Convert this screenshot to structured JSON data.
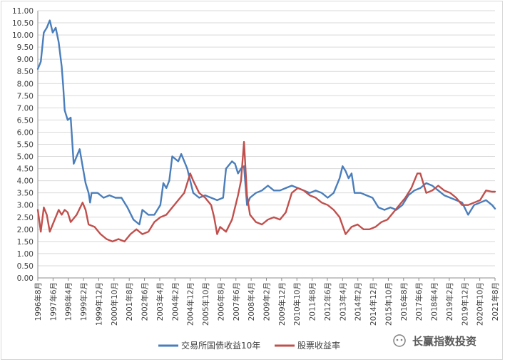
{
  "chart_data": {
    "type": "line",
    "title": "",
    "xlabel": "",
    "ylabel": "",
    "ylim": [
      0,
      11
    ],
    "y_ticks": [
      "0.00",
      "0.50",
      "1.00",
      "1.50",
      "2.00",
      "2.50",
      "3.00",
      "3.50",
      "4.00",
      "4.50",
      "5.00",
      "5.50",
      "6.00",
      "6.50",
      "7.00",
      "7.50",
      "8.00",
      "8.50",
      "9.00",
      "9.50",
      "10.00",
      "10.50",
      "11.00"
    ],
    "x_ticks": [
      "1996年8月",
      "1997年6月",
      "1998年4月",
      "1999年2月",
      "1999年12月",
      "2000年10月",
      "2001年8月",
      "2002年6月",
      "2003年4月",
      "2004年2月",
      "2004年12月",
      "2005年10月",
      "2006年8月",
      "2007年6月",
      "2008年4月",
      "2009年2月",
      "2009年12月",
      "2010年10月",
      "2011年8月",
      "2012年6月",
      "2013年4月",
      "2014年2月",
      "2014年12月",
      "2015年10月",
      "2016年8月",
      "2017年6月",
      "2018年4月",
      "2019年2月",
      "2019年12月",
      "2020年10月",
      "2021年8月"
    ],
    "grid": "horizontal",
    "legend_position": "bottom",
    "series": [
      {
        "name": "交易所国债收益10年",
        "color": "#4a7ebb",
        "points": [
          [
            0,
            8.6
          ],
          [
            1,
            8.9
          ],
          [
            2,
            10.1
          ],
          [
            3,
            10.3
          ],
          [
            4,
            10.6
          ],
          [
            5,
            10.1
          ],
          [
            6,
            10.3
          ],
          [
            7,
            9.7
          ],
          [
            8,
            8.7
          ],
          [
            8.5,
            7.9
          ],
          [
            9,
            6.9
          ],
          [
            10,
            6.5
          ],
          [
            11,
            6.6
          ],
          [
            12,
            4.7
          ],
          [
            13,
            5.0
          ],
          [
            14,
            5.3
          ],
          [
            15,
            4.6
          ],
          [
            16,
            3.9
          ],
          [
            17,
            3.5
          ],
          [
            17.5,
            3.1
          ],
          [
            18,
            3.5
          ],
          [
            20,
            3.5
          ],
          [
            22,
            3.3
          ],
          [
            24,
            3.4
          ],
          [
            26,
            3.3
          ],
          [
            28,
            3.3
          ],
          [
            30,
            2.9
          ],
          [
            32,
            2.4
          ],
          [
            34,
            2.2
          ],
          [
            35,
            2.8
          ],
          [
            37,
            2.6
          ],
          [
            39,
            2.6
          ],
          [
            41,
            3.0
          ],
          [
            42,
            3.9
          ],
          [
            43,
            3.7
          ],
          [
            44,
            4.0
          ],
          [
            45,
            5.0
          ],
          [
            47,
            4.8
          ],
          [
            48,
            5.1
          ],
          [
            50,
            4.5
          ],
          [
            52,
            3.5
          ],
          [
            54,
            3.3
          ],
          [
            56,
            3.4
          ],
          [
            58,
            3.3
          ],
          [
            60,
            3.2
          ],
          [
            62,
            3.3
          ],
          [
            63,
            4.5
          ],
          [
            65,
            4.8
          ],
          [
            66,
            4.7
          ],
          [
            67,
            4.3
          ],
          [
            68,
            4.5
          ],
          [
            69,
            4.6
          ],
          [
            70,
            3.0
          ],
          [
            71,
            3.3
          ],
          [
            73,
            3.5
          ],
          [
            75,
            3.6
          ],
          [
            77,
            3.8
          ],
          [
            79,
            3.6
          ],
          [
            81,
            3.6
          ],
          [
            83,
            3.7
          ],
          [
            85,
            3.8
          ],
          [
            87,
            3.7
          ],
          [
            89,
            3.6
          ],
          [
            91,
            3.5
          ],
          [
            93,
            3.6
          ],
          [
            95,
            3.5
          ],
          [
            97,
            3.3
          ],
          [
            99,
            3.5
          ],
          [
            101,
            4.1
          ],
          [
            102,
            4.6
          ],
          [
            103,
            4.4
          ],
          [
            104,
            4.1
          ],
          [
            105,
            4.3
          ],
          [
            106,
            3.5
          ],
          [
            108,
            3.5
          ],
          [
            110,
            3.4
          ],
          [
            112,
            3.3
          ],
          [
            114,
            2.9
          ],
          [
            116,
            2.8
          ],
          [
            118,
            2.9
          ],
          [
            120,
            2.8
          ],
          [
            122,
            3.0
          ],
          [
            124,
            3.4
          ],
          [
            126,
            3.6
          ],
          [
            128,
            3.7
          ],
          [
            130,
            3.9
          ],
          [
            132,
            3.8
          ],
          [
            134,
            3.6
          ],
          [
            136,
            3.4
          ],
          [
            138,
            3.3
          ],
          [
            140,
            3.2
          ],
          [
            142,
            3.1
          ],
          [
            144,
            2.6
          ],
          [
            146,
            3.0
          ],
          [
            148,
            3.1
          ],
          [
            150,
            3.2
          ],
          [
            152,
            3.0
          ],
          [
            153,
            2.85
          ]
        ]
      },
      {
        "name": "股票收益率",
        "color": "#c0504d",
        "points": [
          [
            0,
            2.8
          ],
          [
            1,
            1.9
          ],
          [
            2,
            2.9
          ],
          [
            3,
            2.6
          ],
          [
            4,
            1.9
          ],
          [
            5,
            2.2
          ],
          [
            6,
            2.5
          ],
          [
            7,
            2.8
          ],
          [
            8,
            2.6
          ],
          [
            9,
            2.8
          ],
          [
            10,
            2.7
          ],
          [
            11,
            2.3
          ],
          [
            13,
            2.6
          ],
          [
            15,
            3.1
          ],
          [
            16,
            2.8
          ],
          [
            17,
            2.2
          ],
          [
            19,
            2.1
          ],
          [
            21,
            1.8
          ],
          [
            23,
            1.6
          ],
          [
            25,
            1.5
          ],
          [
            27,
            1.6
          ],
          [
            29,
            1.5
          ],
          [
            31,
            1.8
          ],
          [
            33,
            2.0
          ],
          [
            35,
            1.8
          ],
          [
            37,
            1.9
          ],
          [
            39,
            2.3
          ],
          [
            41,
            2.5
          ],
          [
            43,
            2.6
          ],
          [
            45,
            2.9
          ],
          [
            47,
            3.2
          ],
          [
            49,
            3.5
          ],
          [
            51,
            4.3
          ],
          [
            52,
            4.0
          ],
          [
            54,
            3.5
          ],
          [
            56,
            3.3
          ],
          [
            58,
            3.0
          ],
          [
            59,
            2.5
          ],
          [
            60,
            1.8
          ],
          [
            61,
            2.1
          ],
          [
            63,
            1.9
          ],
          [
            65,
            2.4
          ],
          [
            67,
            3.4
          ],
          [
            68,
            4.0
          ],
          [
            69,
            5.6
          ],
          [
            70,
            3.4
          ],
          [
            71,
            2.6
          ],
          [
            73,
            2.3
          ],
          [
            75,
            2.2
          ],
          [
            77,
            2.4
          ],
          [
            79,
            2.5
          ],
          [
            81,
            2.4
          ],
          [
            83,
            2.7
          ],
          [
            85,
            3.5
          ],
          [
            87,
            3.7
          ],
          [
            89,
            3.6
          ],
          [
            91,
            3.4
          ],
          [
            93,
            3.3
          ],
          [
            95,
            3.1
          ],
          [
            97,
            3.0
          ],
          [
            99,
            2.8
          ],
          [
            101,
            2.5
          ],
          [
            103,
            1.8
          ],
          [
            105,
            2.1
          ],
          [
            107,
            2.2
          ],
          [
            109,
            2.0
          ],
          [
            111,
            2.0
          ],
          [
            113,
            2.1
          ],
          [
            115,
            2.3
          ],
          [
            117,
            2.4
          ],
          [
            119,
            2.7
          ],
          [
            121,
            3.0
          ],
          [
            123,
            3.3
          ],
          [
            125,
            3.7
          ],
          [
            127,
            4.3
          ],
          [
            128,
            4.3
          ],
          [
            130,
            3.5
          ],
          [
            132,
            3.6
          ],
          [
            134,
            3.8
          ],
          [
            136,
            3.6
          ],
          [
            138,
            3.5
          ],
          [
            140,
            3.3
          ],
          [
            142,
            3.0
          ],
          [
            144,
            3.0
          ],
          [
            146,
            3.1
          ],
          [
            148,
            3.2
          ],
          [
            150,
            3.6
          ],
          [
            152,
            3.55
          ],
          [
            153,
            3.55
          ]
        ]
      }
    ]
  },
  "watermark": {
    "text": "长赢指数投资",
    "icon": "wechat-icon"
  }
}
